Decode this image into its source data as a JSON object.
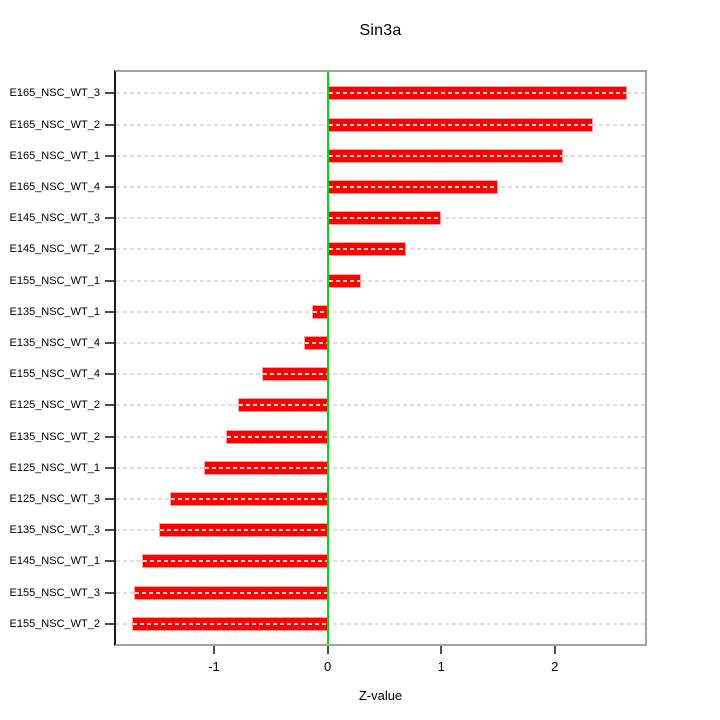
{
  "chart_data": {
    "type": "bar",
    "orientation": "horizontal",
    "title": "Sin3a",
    "xlabel": "Z-value",
    "ylabel": "",
    "categories": [
      "E165_NSC_WT_3",
      "E165_NSC_WT_2",
      "E165_NSC_WT_1",
      "E165_NSC_WT_4",
      "E145_NSC_WT_3",
      "E145_NSC_WT_2",
      "E155_NSC_WT_1",
      "E135_NSC_WT_1",
      "E135_NSC_WT_4",
      "E155_NSC_WT_4",
      "E125_NSC_WT_2",
      "E135_NSC_WT_2",
      "E125_NSC_WT_1",
      "E125_NSC_WT_3",
      "E135_NSC_WT_3",
      "E145_NSC_WT_1",
      "E155_NSC_WT_3",
      "E155_NSC_WT_2"
    ],
    "values": [
      2.64,
      2.34,
      2.07,
      1.5,
      1.0,
      0.69,
      0.29,
      -0.14,
      -0.21,
      -0.58,
      -0.79,
      -0.89,
      -1.09,
      -1.39,
      -1.48,
      -1.63,
      -1.7,
      -1.72
    ],
    "x_ticks": [
      "-1",
      "0",
      "1",
      "2"
    ],
    "x_tick_values": [
      -1,
      0,
      1,
      2
    ],
    "xlim": [
      -1.88,
      2.82
    ],
    "grid": "dashed-horizontal",
    "legend": "none",
    "bar_color": "#fe0000",
    "bar_border_color": "#ff9c9c",
    "zero_line_color": "#00dc00",
    "grid_color": "#dedede",
    "box_color": "#a3a3a3",
    "text_color": "#000000"
  }
}
